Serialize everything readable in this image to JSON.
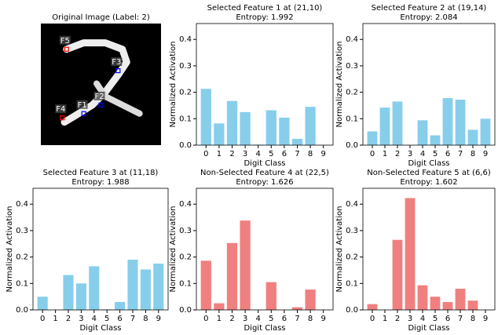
{
  "chart_data": [
    {
      "type": "image",
      "title": "Original Image (Label: 2)",
      "markers": [
        {
          "label": "F1",
          "color": "#0000ff"
        },
        {
          "label": "F2",
          "color": "#0000ff"
        },
        {
          "label": "F3",
          "color": "#0000ff"
        },
        {
          "label": "F4",
          "color": "#ff0000"
        },
        {
          "label": "F5",
          "color": "#ff0000"
        }
      ]
    },
    {
      "type": "bar",
      "title": "Selected Feature 1 at (21,10)",
      "subtitle": "Entropy: 1.992",
      "xlabel": "Digit Class",
      "ylabel": "Normalized Activation",
      "categories": [
        "0",
        "1",
        "2",
        "3",
        "4",
        "5",
        "6",
        "7",
        "8",
        "9"
      ],
      "values": [
        0.213,
        0.082,
        0.167,
        0.125,
        0.002,
        0.132,
        0.104,
        0.024,
        0.145,
        0.0
      ],
      "color": "#87ceeb",
      "ylim": [
        0,
        0.46
      ],
      "yticks": [
        {
          "value": 0,
          "label": "0.0"
        },
        {
          "value": 0.1,
          "label": "0.1"
        },
        {
          "value": 0.2,
          "label": "0.2"
        },
        {
          "value": 0.3,
          "label": "0.3"
        },
        {
          "value": 0.4,
          "label": "0.4"
        }
      ]
    },
    {
      "type": "bar",
      "title": "Selected Feature 2 at (19,14)",
      "subtitle": "Entropy: 2.084",
      "xlabel": "Digit Class",
      "ylabel": "Normalized Activation",
      "categories": [
        "0",
        "1",
        "2",
        "3",
        "4",
        "5",
        "6",
        "7",
        "8",
        "9"
      ],
      "values": [
        0.052,
        0.142,
        0.165,
        0.0,
        0.094,
        0.037,
        0.178,
        0.172,
        0.058,
        0.1
      ],
      "color": "#87ceeb",
      "ylim": [
        0,
        0.46
      ],
      "yticks": [
        {
          "value": 0,
          "label": "0.0"
        },
        {
          "value": 0.1,
          "label": "0.1"
        },
        {
          "value": 0.2,
          "label": "0.2"
        },
        {
          "value": 0.3,
          "label": "0.3"
        },
        {
          "value": 0.4,
          "label": "0.4"
        }
      ]
    },
    {
      "type": "bar",
      "title": "Selected Feature 3 at (11,18)",
      "subtitle": "Entropy: 1.988",
      "xlabel": "Digit Class",
      "ylabel": "Normalized Activation",
      "categories": [
        "0",
        "1",
        "2",
        "3",
        "4",
        "5",
        "6",
        "7",
        "8",
        "9"
      ],
      "values": [
        0.05,
        0.0,
        0.132,
        0.1,
        0.165,
        0.002,
        0.03,
        0.19,
        0.153,
        0.175
      ],
      "color": "#87ceeb",
      "ylim": [
        0,
        0.46
      ],
      "yticks": [
        {
          "value": 0,
          "label": "0.0"
        },
        {
          "value": 0.1,
          "label": "0.1"
        },
        {
          "value": 0.2,
          "label": "0.2"
        },
        {
          "value": 0.3,
          "label": "0.3"
        },
        {
          "value": 0.4,
          "label": "0.4"
        }
      ]
    },
    {
      "type": "bar",
      "title": "Non-Selected Feature 4 at (22,5)",
      "subtitle": "Entropy: 1.626",
      "xlabel": "Digit Class",
      "ylabel": "Normalized Activation",
      "categories": [
        "0",
        "1",
        "2",
        "3",
        "4",
        "5",
        "6",
        "7",
        "8",
        "9"
      ],
      "values": [
        0.186,
        0.025,
        0.253,
        0.338,
        0.0,
        0.105,
        0.0,
        0.01,
        0.077,
        0.0
      ],
      "color": "#f08080",
      "ylim": [
        0,
        0.46
      ],
      "yticks": [
        {
          "value": 0,
          "label": "0.0"
        },
        {
          "value": 0.1,
          "label": "0.1"
        },
        {
          "value": 0.2,
          "label": "0.2"
        },
        {
          "value": 0.3,
          "label": "0.3"
        },
        {
          "value": 0.4,
          "label": "0.4"
        }
      ]
    },
    {
      "type": "bar",
      "title": "Non-Selected Feature 5 at (6,6)",
      "subtitle": "Entropy: 1.602",
      "xlabel": "Digit Class",
      "ylabel": "Normalized Activation",
      "categories": [
        "0",
        "1",
        "2",
        "3",
        "4",
        "5",
        "6",
        "7",
        "8",
        "9"
      ],
      "values": [
        0.022,
        0.0,
        0.265,
        0.423,
        0.093,
        0.05,
        0.03,
        0.08,
        0.035,
        0.0
      ],
      "color": "#f08080",
      "ylim": [
        0,
        0.46
      ],
      "yticks": [
        {
          "value": 0,
          "label": "0.0"
        },
        {
          "value": 0.1,
          "label": "0.1"
        },
        {
          "value": 0.2,
          "label": "0.2"
        },
        {
          "value": 0.3,
          "label": "0.3"
        },
        {
          "value": 0.4,
          "label": "0.4"
        }
      ]
    }
  ]
}
